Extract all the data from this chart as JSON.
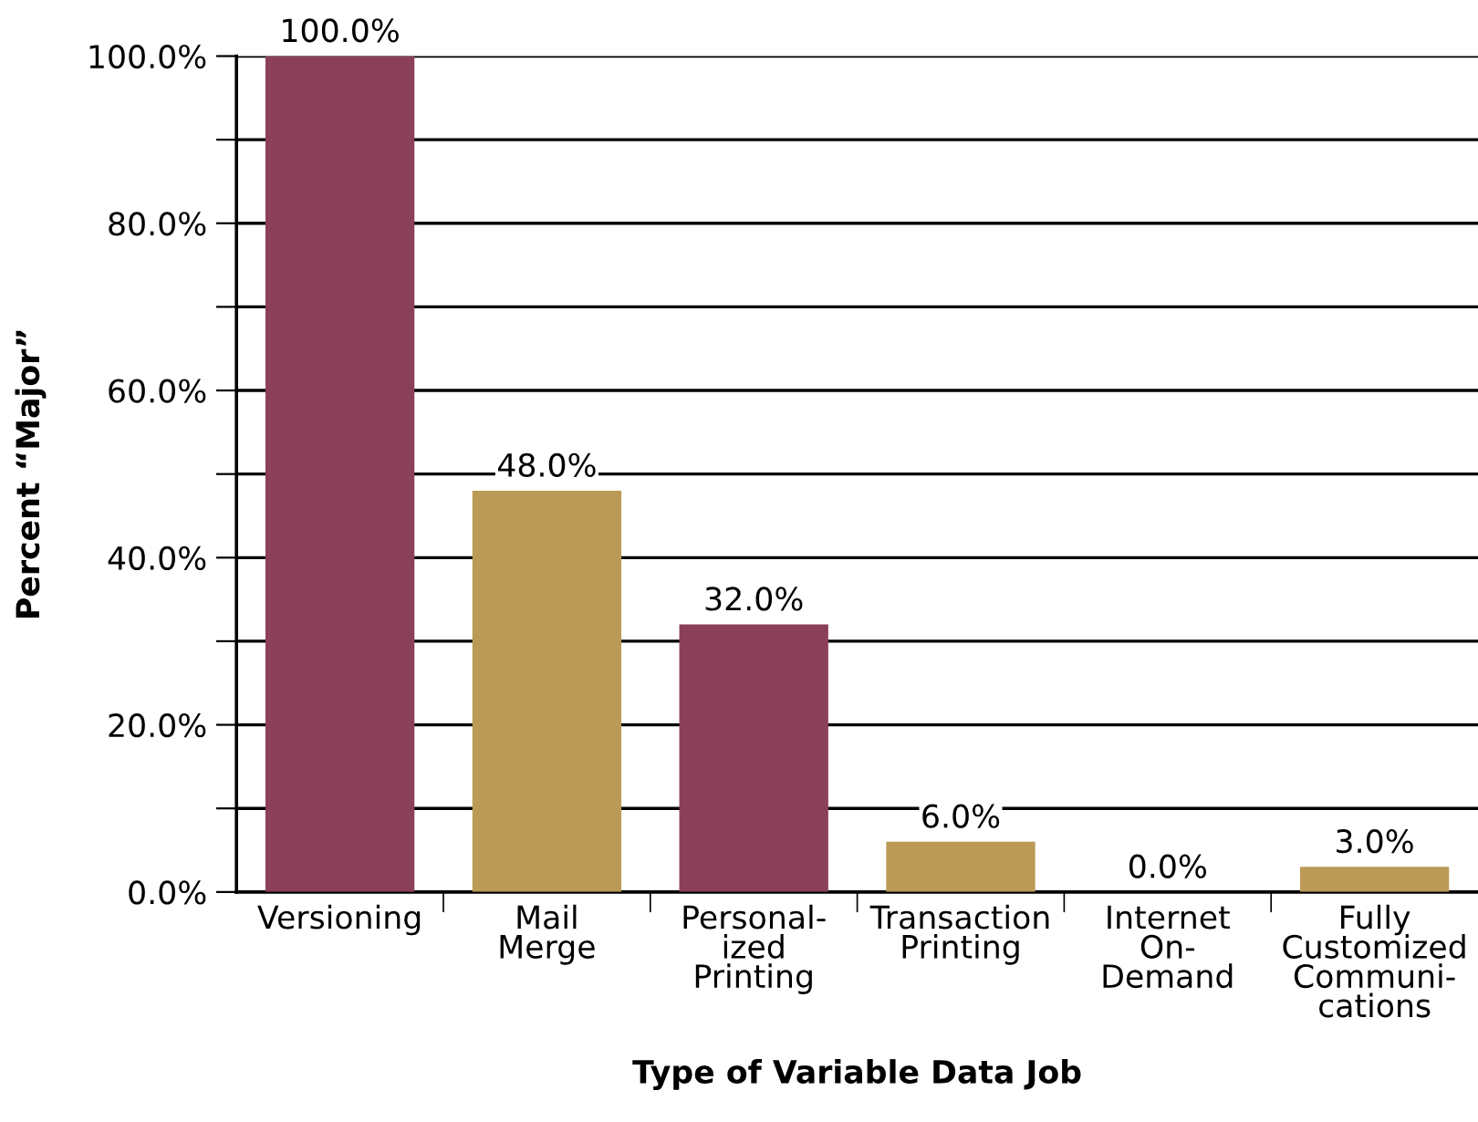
{
  "chart_data": {
    "type": "bar",
    "xlabel": "Type of Variable Data Job",
    "ylabel": "Percent “Major”",
    "categories": [
      "Versioning",
      "Mail\nMerge",
      "Personal-\nized\nPrinting",
      "Transaction\nPrinting",
      "Internet\nOn-\nDemand",
      "Fully\nCustomized\nCommuni-\ncations"
    ],
    "values": [
      100.0,
      48.0,
      32.0,
      6.0,
      0.0,
      3.0
    ],
    "colors": [
      "#8b3f58",
      "#bb9a55",
      "#8b3f58",
      "#bb9a55",
      "#8b3f58",
      "#bb9a55"
    ],
    "value_labels": [
      "100.0%",
      "48.0%",
      "32.0%",
      "6.0%",
      "0.0%",
      "3.0%"
    ],
    "ylim": [
      0,
      100
    ],
    "yticks": [
      {
        "value": 0,
        "label": "0.0%"
      },
      {
        "value": 10,
        "label": null
      },
      {
        "value": 20,
        "label": "20.0%"
      },
      {
        "value": 30,
        "label": null
      },
      {
        "value": 40,
        "label": "40.0%"
      },
      {
        "value": 50,
        "label": null
      },
      {
        "value": 60,
        "label": "60.0%"
      },
      {
        "value": 70,
        "label": null
      },
      {
        "value": 80,
        "label": "80.0%"
      },
      {
        "value": 90,
        "label": null
      },
      {
        "value": 100,
        "label": "100.0%"
      }
    ],
    "grid": "y"
  }
}
